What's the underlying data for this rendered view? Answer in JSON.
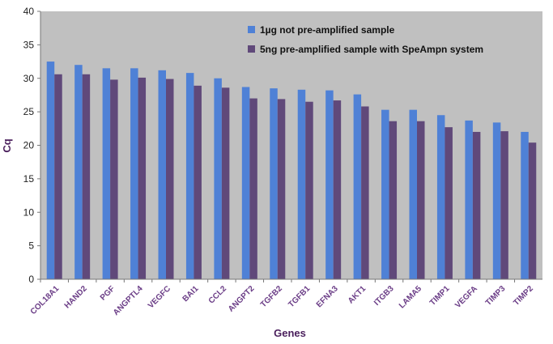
{
  "chart_data": {
    "type": "bar",
    "xlabel": "Genes",
    "ylabel": "Cq",
    "ylim": [
      0,
      40
    ],
    "yticks": [
      0,
      5,
      10,
      15,
      20,
      25,
      30,
      35,
      40
    ],
    "grid": false,
    "legend_position": "top-right",
    "categories": [
      "COL18A1",
      "HAND2",
      "PGF",
      "ANGPTL4",
      "VEGFC",
      "BAI1",
      "CCL2",
      "ANGPT2",
      "TGFB2",
      "TGFB1",
      "EFNA3",
      "AKT1",
      "ITGB3",
      "LAMA5",
      "TIMP1",
      "VEGFA",
      "TIMP3",
      "TIMP2"
    ],
    "series": [
      {
        "name": "1µg not pre-amplified sample",
        "color": "#4f81d6",
        "values": [
          32.5,
          32.0,
          31.5,
          31.5,
          31.2,
          30.8,
          30.0,
          28.7,
          28.5,
          28.3,
          28.2,
          27.6,
          25.3,
          25.3,
          24.5,
          23.7,
          23.4,
          22.0
        ]
      },
      {
        "name": "5ng pre-amplified sample with SpeAmpn system",
        "color": "#60497a",
        "values": [
          30.6,
          30.6,
          29.8,
          30.1,
          29.9,
          28.9,
          28.6,
          27.0,
          26.9,
          26.5,
          26.7,
          25.8,
          23.6,
          23.6,
          22.7,
          22.0,
          22.1,
          20.4
        ]
      }
    ],
    "plot_area_color": "#c0c0c0"
  }
}
